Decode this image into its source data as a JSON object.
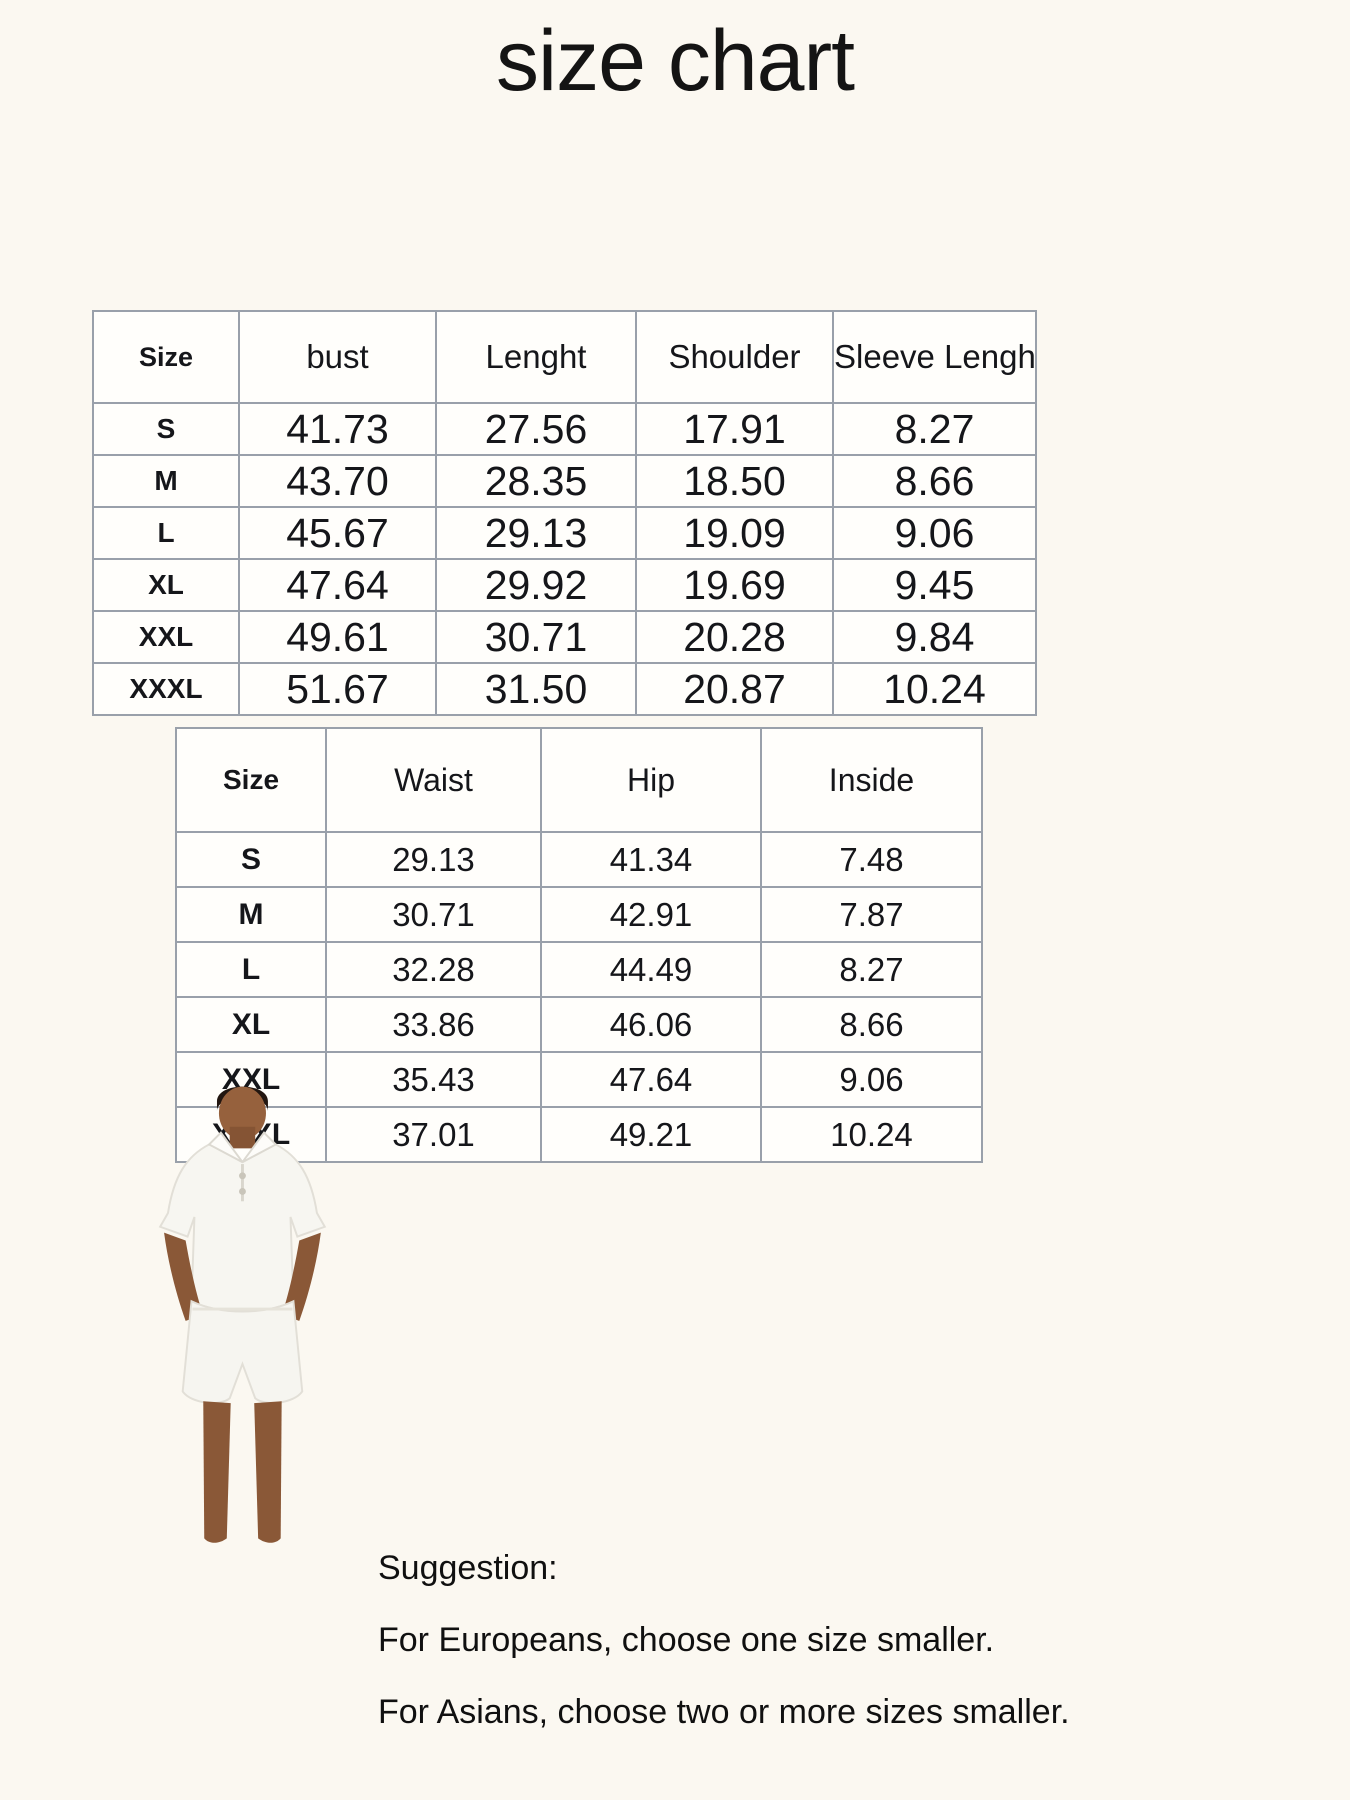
{
  "page": {
    "title": "size chart"
  },
  "tables": {
    "top": {
      "headers": [
        "Size",
        "bust",
        "Lenght",
        "Shoulder",
        "Sleeve Lenght"
      ],
      "rows": [
        [
          "S",
          "41.73",
          "27.56",
          "17.91",
          "8.27"
        ],
        [
          "M",
          "43.70",
          "28.35",
          "18.50",
          "8.66"
        ],
        [
          "L",
          "45.67",
          "29.13",
          "19.09",
          "9.06"
        ],
        [
          "XL",
          "47.64",
          "29.92",
          "19.69",
          "9.45"
        ],
        [
          "XXL",
          "49.61",
          "30.71",
          "20.28",
          "9.84"
        ],
        [
          "XXXL",
          "51.67",
          "31.50",
          "20.87",
          "10.24"
        ]
      ]
    },
    "bottom": {
      "headers": [
        "Size",
        "Waist",
        "Hip",
        "Inside"
      ],
      "rows": [
        [
          "S",
          "29.13",
          "41.34",
          "7.48"
        ],
        [
          "M",
          "30.71",
          "42.91",
          "7.87"
        ],
        [
          "L",
          "32.28",
          "44.49",
          "8.27"
        ],
        [
          "XL",
          "33.86",
          "46.06",
          "8.66"
        ],
        [
          "XXL",
          "35.43",
          "47.64",
          "9.06"
        ],
        [
          "XXXL",
          "37.01",
          "49.21",
          "10.24"
        ]
      ]
    }
  },
  "model_image": {
    "alt": "Man wearing a white short-sleeve polo shirt and white shorts, hands in pockets"
  },
  "suggestion": {
    "heading": "Suggestion:",
    "lines": [
      "For Europeans, choose one size smaller.",
      "For Asians, choose two or more sizes smaller."
    ]
  },
  "colors": {
    "page_background": "#fbf8f1",
    "table_cell_background": "#fffefb",
    "table_border": "#99a0aa",
    "text": "#15161a"
  }
}
